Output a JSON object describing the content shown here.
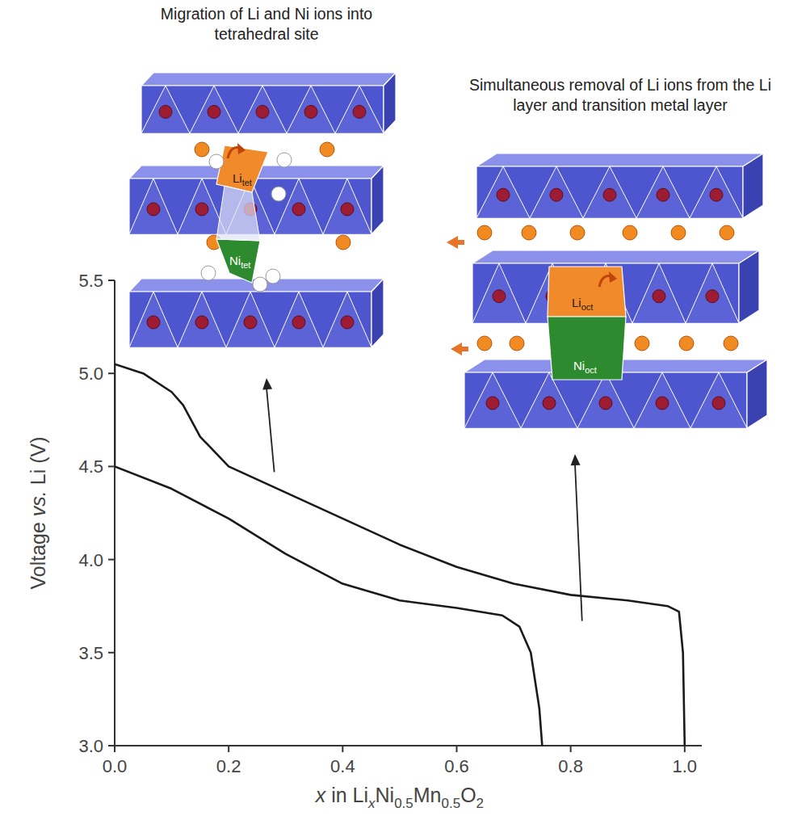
{
  "chart_data": {
    "type": "line",
    "x_label": [
      {
        "text": "x",
        "italic": true
      },
      {
        "text": " in Li"
      },
      {
        "text": "x",
        "italic": true,
        "sub": true
      },
      {
        "text": "Ni"
      },
      {
        "text": "0.5",
        "sub": true
      },
      {
        "text": "Mn"
      },
      {
        "text": "0.5",
        "sub": true
      },
      {
        "text": "O"
      },
      {
        "text": "2",
        "sub": true
      }
    ],
    "y_label": [
      {
        "text": "Voltage "
      },
      {
        "text": "vs.",
        "italic": true
      },
      {
        "text": " Li (V)"
      }
    ],
    "xlim": [
      0,
      1.03
    ],
    "ylim": [
      3.0,
      5.5
    ],
    "xticks": [
      {
        "value": 0,
        "label": "0.0"
      },
      0.2,
      0.4,
      0.6,
      0.8,
      {
        "value": 1,
        "label": "1.0"
      }
    ],
    "yticks": [
      {
        "value": 3,
        "label": "3.0"
      },
      3.5,
      {
        "value": 4,
        "label": "4.0"
      },
      4.5,
      {
        "value": 5,
        "label": "5.0"
      },
      5.5
    ],
    "grid": false,
    "series": [
      {
        "color": "#1a1a1a",
        "line_style": "solid",
        "x": [
          1.0,
          0.997,
          0.99,
          0.97,
          0.9,
          0.8,
          0.7,
          0.6,
          0.5,
          0.4,
          0.3,
          0.2,
          0.15,
          0.12,
          0.1,
          0.05,
          0.0,
          0.0,
          0.1,
          0.2,
          0.3,
          0.4,
          0.5,
          0.6,
          0.68,
          0.71,
          0.73,
          0.745,
          0.75
        ],
        "values": [
          3.0,
          3.5,
          3.72,
          3.75,
          3.78,
          3.81,
          3.87,
          3.96,
          4.08,
          4.22,
          4.36,
          4.5,
          4.66,
          4.83,
          4.9,
          5.0,
          5.05,
          4.5,
          4.38,
          4.22,
          4.03,
          3.87,
          3.78,
          3.74,
          3.7,
          3.64,
          3.5,
          3.2,
          3.0
        ]
      }
    ],
    "annotations": [
      {
        "text": "Migration of Li and Ni ions into tetrahedral site",
        "anchor": [
          0.28,
          4.47
        ]
      },
      {
        "text": "Simultaneous removal of Li ions from the Li layer and transition metal layer",
        "anchor": [
          0.82,
          3.67
        ]
      }
    ],
    "structure_labels": [
      {
        "text": "Li",
        "sub": "tet"
      },
      {
        "text": "Ni",
        "sub": "tet"
      },
      {
        "text": "Li",
        "sub": "oct"
      },
      {
        "text": "Ni",
        "sub": "oct"
      }
    ]
  }
}
